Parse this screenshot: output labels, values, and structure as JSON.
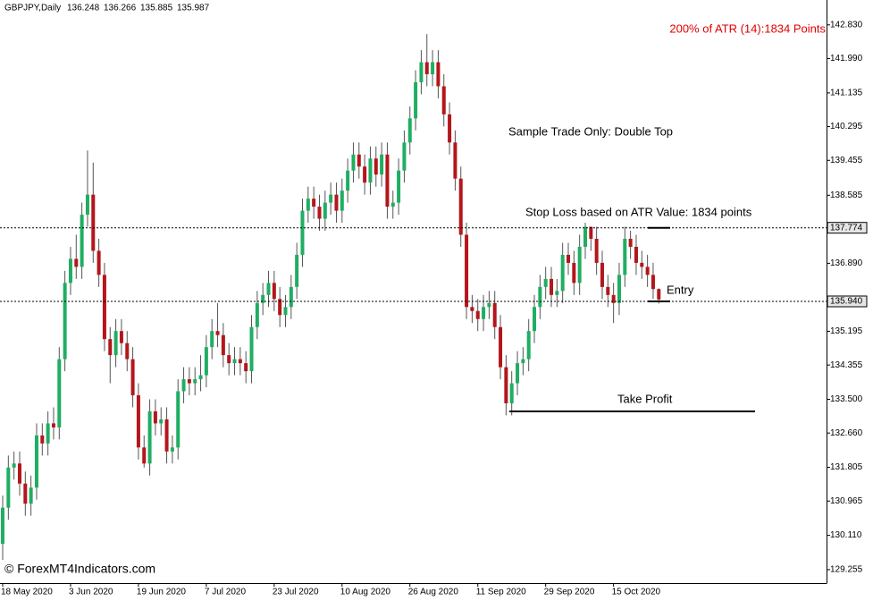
{
  "chart_data": {
    "type": "candlestick",
    "symbol": "GBPJPY,Daily",
    "categories": [
      "18 May 2020",
      null,
      null,
      null,
      null,
      null,
      null,
      null,
      null,
      null,
      null,
      null,
      "3 Jun 2020",
      null,
      null,
      null,
      null,
      null,
      null,
      null,
      null,
      null,
      null,
      null,
      "19 Jun 2020",
      null,
      null,
      null,
      null,
      null,
      null,
      null,
      null,
      null,
      null,
      null,
      "7 Jul 2020",
      null,
      null,
      null,
      null,
      null,
      null,
      null,
      null,
      null,
      null,
      null,
      "23 Jul 2020",
      null,
      null,
      null,
      null,
      null,
      null,
      null,
      null,
      null,
      null,
      null,
      "10 Aug 2020",
      null,
      null,
      null,
      null,
      null,
      null,
      null,
      null,
      null,
      null,
      null,
      "26 Aug 2020",
      null,
      null,
      null,
      null,
      null,
      null,
      null,
      null,
      null,
      null,
      null,
      "11 Sep 2020",
      null,
      null,
      null,
      null,
      null,
      null,
      null,
      null,
      null,
      null,
      null,
      "29 Sep 2020",
      null,
      null,
      null,
      null,
      null,
      null,
      null,
      null,
      null,
      null,
      null,
      "15 Oct 2020",
      null,
      null,
      null,
      null,
      null,
      null,
      null,
      null
    ],
    "open": [
      129.9,
      130.8,
      131.8,
      131.9,
      131.4,
      130.9,
      131.3,
      132.6,
      132.4,
      132.9,
      132.8,
      134.5,
      136.4,
      137.0,
      136.8,
      138.1,
      138.6,
      137.2,
      136.6,
      135.0,
      134.6,
      135.2,
      134.9,
      134.5,
      133.6,
      132.3,
      131.9,
      133.2,
      132.9,
      133.0,
      132.2,
      132.3,
      133.7,
      134.0,
      133.9,
      134.0,
      134.1,
      134.8,
      135.2,
      135.1,
      134.6,
      134.4,
      134.5,
      134.4,
      134.2,
      135.3,
      135.9,
      136.1,
      136.4,
      136.0,
      135.6,
      135.8,
      136.3,
      137.1,
      138.2,
      138.5,
      138.3,
      138.0,
      138.4,
      138.6,
      138.2,
      138.7,
      139.2,
      139.6,
      139.3,
      138.9,
      139.5,
      139.1,
      139.6,
      138.3,
      138.4,
      139.2,
      139.9,
      140.5,
      141.4,
      141.9,
      141.6,
      141.9,
      141.3,
      140.6,
      139.9,
      139.0,
      137.6,
      135.8,
      135.7,
      135.5,
      135.8,
      135.9,
      135.3,
      134.3,
      133.4,
      133.9,
      134.4,
      134.5,
      135.2,
      135.8,
      136.3,
      136.5,
      136.1,
      136.2,
      137.1,
      136.9,
      136.4,
      137.3,
      137.8,
      137.5,
      136.9,
      136.3,
      136.1,
      135.9,
      136.6,
      137.5,
      137.3,
      136.9,
      136.8,
      136.6,
      136.248
    ],
    "high": [
      131.1,
      132.1,
      132.2,
      132.2,
      131.7,
      131.6,
      132.9,
      132.9,
      133.2,
      133.3,
      134.8,
      136.7,
      137.3,
      137.6,
      138.4,
      139.7,
      139.4,
      137.5,
      136.9,
      135.3,
      135.5,
      135.5,
      135.2,
      134.8,
      133.9,
      132.6,
      133.5,
      133.5,
      133.3,
      133.3,
      132.6,
      134.0,
      134.3,
      134.3,
      134.3,
      134.6,
      135.1,
      135.5,
      135.9,
      135.4,
      134.9,
      134.8,
      134.8,
      134.7,
      135.6,
      136.2,
      136.4,
      136.7,
      136.7,
      136.3,
      136.1,
      136.6,
      137.4,
      138.5,
      138.8,
      138.8,
      138.6,
      138.7,
      138.9,
      138.9,
      139.0,
      139.5,
      139.9,
      139.9,
      139.6,
      139.8,
      139.8,
      139.9,
      139.9,
      138.7,
      139.5,
      140.2,
      140.8,
      141.7,
      142.2,
      142.6,
      142.2,
      142.2,
      141.6,
      140.9,
      140.2,
      139.3,
      137.9,
      136.1,
      136.0,
      136.1,
      136.2,
      136.2,
      135.6,
      134.6,
      134.2,
      134.7,
      134.8,
      135.5,
      136.1,
      136.6,
      136.8,
      136.8,
      136.5,
      137.4,
      137.4,
      137.2,
      137.6,
      137.9,
      137.8,
      137.8,
      137.2,
      136.6,
      136.4,
      136.9,
      137.8,
      137.7,
      137.6,
      137.2,
      137.1,
      136.9,
      136.266
    ],
    "low": [
      129.5,
      130.5,
      131.5,
      131.1,
      130.6,
      130.6,
      131.0,
      132.1,
      132.1,
      132.5,
      132.5,
      134.2,
      136.1,
      136.5,
      136.5,
      137.8,
      136.9,
      136.3,
      134.7,
      133.9,
      134.3,
      134.6,
      134.2,
      133.3,
      132.0,
      131.8,
      131.6,
      132.6,
      132.6,
      131.9,
      131.9,
      132.0,
      133.4,
      133.6,
      133.6,
      133.7,
      133.8,
      134.5,
      134.8,
      134.3,
      134.1,
      134.1,
      134.1,
      133.9,
      133.9,
      135.0,
      135.6,
      135.8,
      135.7,
      135.3,
      135.3,
      135.5,
      136.0,
      136.8,
      137.9,
      138.0,
      137.7,
      137.7,
      138.1,
      137.9,
      137.9,
      138.4,
      138.9,
      139.0,
      138.6,
      138.6,
      138.8,
      138.8,
      138.0,
      138.0,
      138.1,
      138.9,
      139.6,
      140.2,
      141.1,
      141.3,
      141.3,
      141.0,
      140.3,
      139.6,
      138.7,
      137.3,
      135.5,
      135.4,
      135.2,
      135.2,
      135.5,
      135.0,
      134.0,
      133.1,
      133.1,
      133.6,
      134.1,
      134.2,
      134.9,
      135.5,
      136.0,
      135.8,
      135.8,
      135.9,
      136.6,
      136.1,
      136.1,
      137.0,
      137.2,
      136.6,
      136.0,
      135.8,
      135.4,
      135.6,
      136.3,
      137.0,
      136.6,
      136.5,
      136.3,
      136.0,
      135.885
    ],
    "close": [
      130.8,
      131.8,
      131.9,
      131.4,
      130.9,
      131.3,
      132.6,
      132.4,
      132.9,
      132.8,
      134.5,
      136.4,
      137.0,
      136.8,
      138.1,
      138.6,
      137.2,
      136.6,
      135.0,
      134.6,
      135.2,
      134.9,
      134.5,
      133.6,
      132.3,
      131.9,
      133.2,
      132.9,
      133.0,
      132.2,
      132.3,
      133.7,
      134.0,
      133.9,
      134.0,
      134.1,
      134.8,
      135.2,
      135.1,
      134.6,
      134.4,
      134.5,
      134.4,
      134.2,
      135.3,
      135.9,
      136.1,
      136.4,
      136.0,
      135.6,
      135.8,
      136.3,
      137.1,
      138.2,
      138.5,
      138.3,
      138.0,
      138.4,
      138.6,
      138.2,
      138.7,
      139.2,
      139.6,
      139.3,
      138.9,
      139.5,
      139.1,
      139.6,
      138.3,
      138.4,
      139.2,
      139.9,
      140.5,
      141.4,
      141.9,
      141.6,
      141.9,
      141.3,
      140.6,
      139.9,
      139.0,
      137.6,
      135.8,
      135.7,
      135.5,
      135.8,
      135.9,
      135.3,
      134.3,
      133.4,
      133.9,
      134.4,
      134.5,
      135.2,
      135.8,
      136.3,
      136.5,
      136.1,
      136.2,
      137.1,
      136.9,
      136.4,
      137.3,
      137.8,
      137.5,
      136.9,
      136.3,
      136.1,
      135.9,
      136.6,
      137.5,
      137.3,
      136.9,
      136.8,
      136.6,
      136.248,
      135.987
    ],
    "colors": {
      "up": "#1fae62",
      "down": "#b3161b"
    },
    "ylim": [
      128.92,
      143.45
    ],
    "yticks": [
      {
        "value": 142.83,
        "label": "142.830"
      },
      {
        "value": 141.99,
        "label": "141.990"
      },
      {
        "value": 141.135,
        "label": "141.135"
      },
      {
        "value": 140.295,
        "label": "140.295"
      },
      {
        "value": 139.455,
        "label": "139.455"
      },
      {
        "value": 138.585,
        "label": "138.585"
      },
      {
        "value": 136.89,
        "label": "136.890"
      },
      {
        "value": 135.195,
        "label": "135.195"
      },
      {
        "value": 134.355,
        "label": "134.355"
      },
      {
        "value": 133.5,
        "label": "133.500"
      },
      {
        "value": 132.66,
        "label": "132.660"
      },
      {
        "value": 131.805,
        "label": "131.805"
      },
      {
        "value": 130.965,
        "label": "130.965"
      },
      {
        "value": 130.11,
        "label": "130.110"
      },
      {
        "value": 129.255,
        "label": "129.255"
      }
    ],
    "levels": [
      {
        "value": 137.774,
        "label": "137.774"
      },
      {
        "value": 135.94,
        "label": "135.940"
      }
    ],
    "take_profit_level": 133.2,
    "atr_text": "200% of ATR (14):1834 Points",
    "annotations": {
      "pattern": "Sample Trade Only: Double Top",
      "stop_loss": "Stop Loss based on ATR Value: 1834 points",
      "entry": "Entry",
      "take_profit": "Take Profit"
    },
    "watermark": "© ForexMT4Indicators.com"
  }
}
